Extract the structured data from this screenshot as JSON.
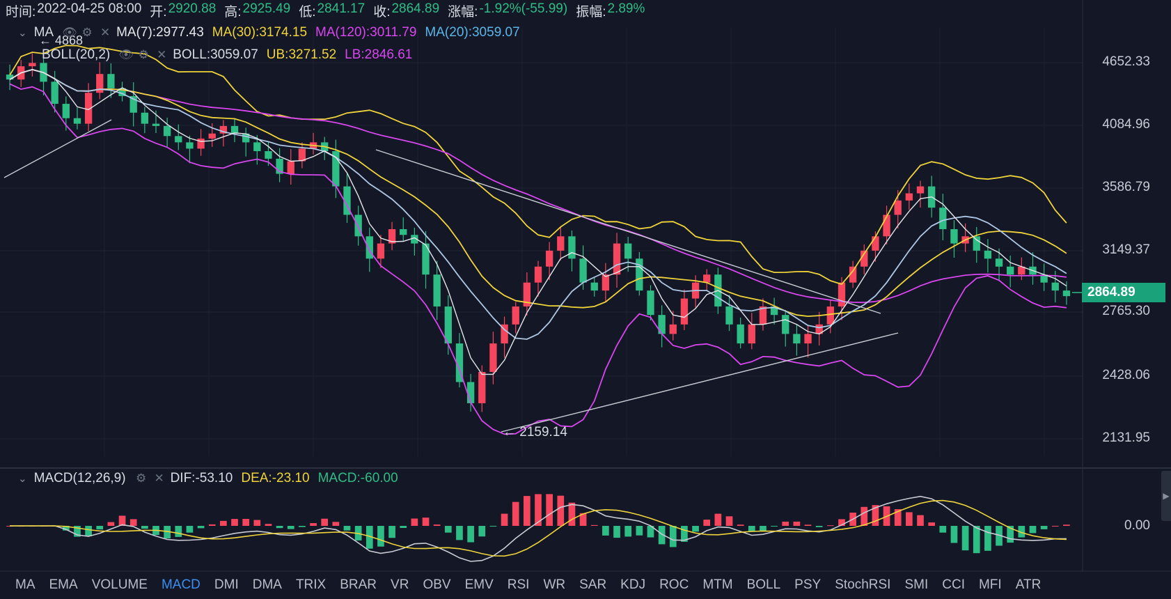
{
  "info": {
    "time_label": "时间:",
    "time": "2022-04-25 08:00",
    "open_label": "开:",
    "open": "2920.88",
    "high_label": "高:",
    "high": "2925.49",
    "low_label": "低:",
    "low": "2841.17",
    "close_label": "收:",
    "close": "2864.89",
    "change_label": "涨幅:",
    "change": "-1.92%(-55.99)",
    "amp_label": "振幅:",
    "amp": "2.89%"
  },
  "ma_legend": {
    "name": "MA",
    "items": [
      {
        "label": "MA(7):2977.43",
        "color": "#e5e7eb"
      },
      {
        "label": "MA(30):3174.15",
        "color": "#f0d43a"
      },
      {
        "label": "MA(120):3011.79",
        "color": "#d946ef"
      },
      {
        "label": "MA(20):3059.07",
        "color": "#5bb6e8"
      }
    ]
  },
  "boll_legend": {
    "name": "BOLL(20,2)",
    "items": [
      {
        "label": "BOLL:3059.07",
        "color": "#d8dce4"
      },
      {
        "label": "UB:3271.52",
        "color": "#f0d43a"
      },
      {
        "label": "LB:2846.61",
        "color": "#d946ef"
      }
    ]
  },
  "macd_legend": {
    "name": "MACD(12,26,9)",
    "items": [
      {
        "label": "DIF:-53.10",
        "color": "#d8dce4"
      },
      {
        "label": "DEA:-23.10",
        "color": "#f0d43a"
      },
      {
        "label": "MACD:-60.00",
        "color": "#2ebd85"
      }
    ]
  },
  "price_axis": [
    "4652.33",
    "4084.96",
    "3586.79",
    "3149.37",
    "2765.30",
    "2428.06",
    "2131.95"
  ],
  "current_price": "2864.89",
  "macd_axis": [
    "0.00"
  ],
  "annotations": {
    "high_mark": "4868",
    "low_mark": "2159.14"
  },
  "tabs": [
    "MA",
    "EMA",
    "VOLUME",
    "MACD",
    "DMI",
    "DMA",
    "TRIX",
    "BRAR",
    "VR",
    "OBV",
    "EMV",
    "RSI",
    "WR",
    "SAR",
    "KDJ",
    "ROC",
    "MTM",
    "BOLL",
    "PSY",
    "StochRSI",
    "SMI",
    "CCI",
    "MFI",
    "ATR"
  ],
  "active_tab": "MACD",
  "colors": {
    "up": "#f6465d",
    "down": "#2ebd85",
    "ma7": "#e5e7eb",
    "ma30": "#f0d43a",
    "ma120": "#d946ef",
    "ma20": "#5bb6e8"
  },
  "chart_data": {
    "type": "candlestick",
    "ylim": [
      2100,
      4700
    ],
    "price_ticks": [
      4652.33,
      4084.96,
      3586.79,
      3149.37,
      2765.3,
      2428.06,
      2131.95
    ],
    "close_path": [
      4500,
      4620,
      4650,
      4480,
      4280,
      4150,
      4100,
      4380,
      4550,
      4420,
      4350,
      4200,
      4100,
      4080,
      4000,
      3950,
      3900,
      3980,
      4020,
      4080,
      4020,
      3950,
      3880,
      3820,
      3700,
      3800,
      3900,
      3950,
      3880,
      3600,
      3400,
      3250,
      3100,
      3200,
      3300,
      3260,
      3200,
      3000,
      2800,
      2600,
      2400,
      2300,
      2450,
      2600,
      2700,
      2800,
      2950,
      3050,
      3150,
      3250,
      3100,
      2950,
      2900,
      3000,
      3200,
      3100,
      2900,
      2750,
      2650,
      2700,
      2850,
      2950,
      3000,
      2800,
      2700,
      2600,
      2700,
      2800,
      2750,
      2650,
      2600,
      2650,
      2700,
      2800,
      2950,
      3050,
      3150,
      3250,
      3400,
      3500,
      3550,
      3600,
      3450,
      3300,
      3200,
      3250,
      3150,
      3100,
      3050,
      3000,
      3050,
      3000,
      2950,
      2900,
      2864.89
    ],
    "annotations": [
      {
        "label": "4868",
        "value": 4868
      },
      {
        "label": "2159.14",
        "value": 2159.14
      }
    ],
    "macd": {
      "zero": 0.0
    }
  }
}
